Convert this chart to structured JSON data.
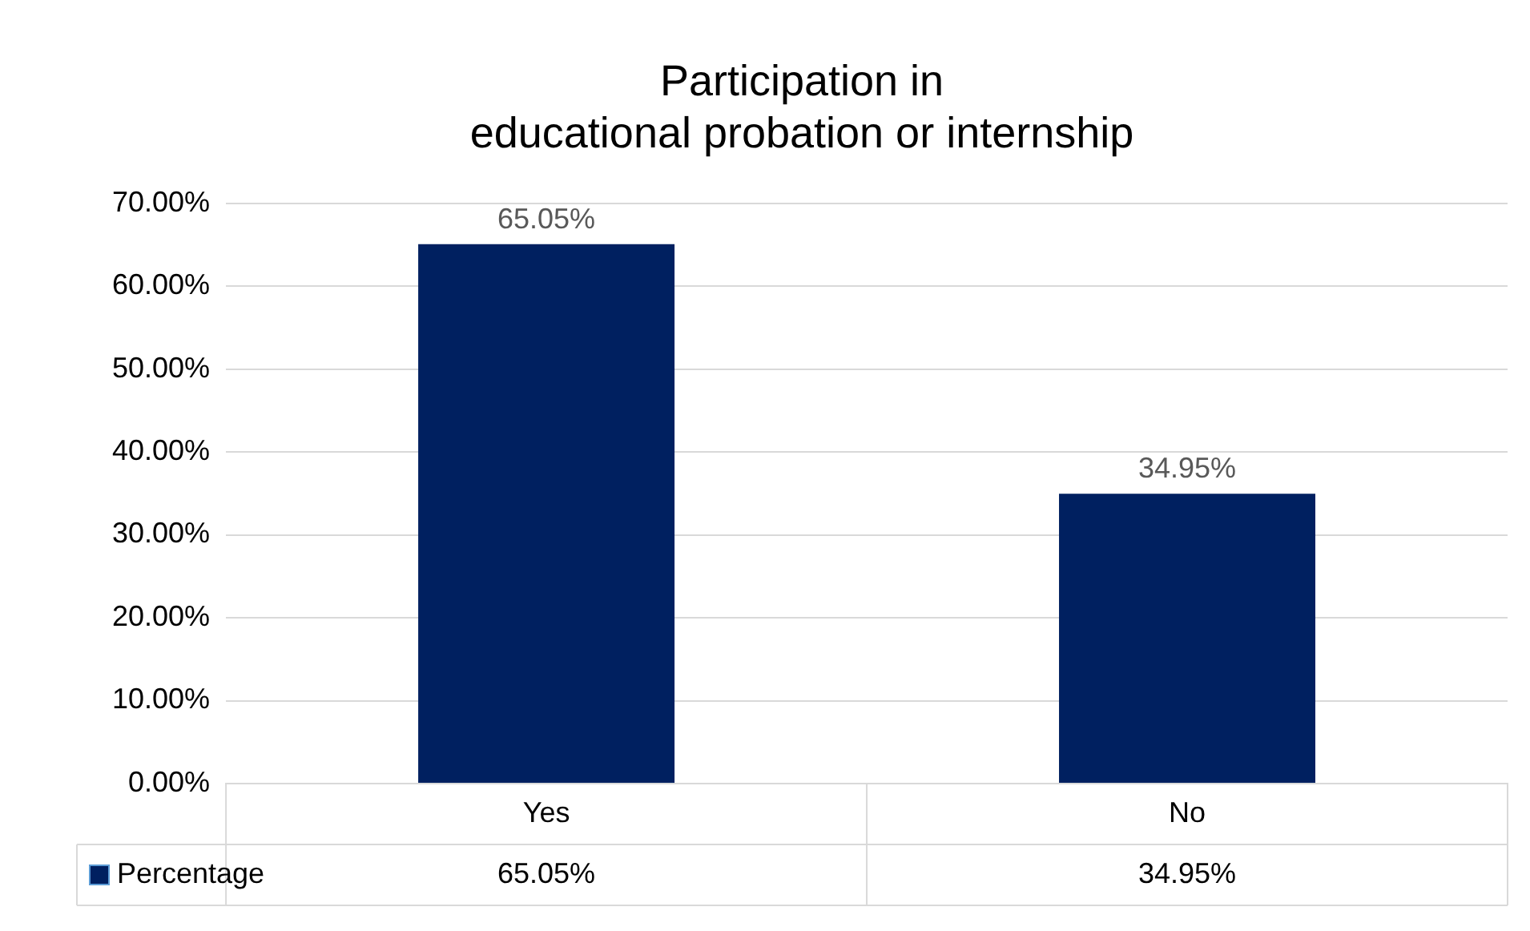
{
  "chart_data": {
    "type": "bar",
    "title": "Participation in\neducational probation or internship",
    "categories": [
      "Yes",
      "No"
    ],
    "series": [
      {
        "name": "Percentage",
        "color": "#002060",
        "values": [
          65.05,
          34.95
        ],
        "value_labels": [
          "65.05%",
          "34.95%"
        ]
      }
    ],
    "ylim": [
      0,
      70
    ],
    "yticks": [
      {
        "value": 0,
        "label": "0.00%"
      },
      {
        "value": 10,
        "label": "10.00%"
      },
      {
        "value": 20,
        "label": "20.00%"
      },
      {
        "value": 30,
        "label": "30.00%"
      },
      {
        "value": 40,
        "label": "40.00%"
      },
      {
        "value": 50,
        "label": "50.00%"
      },
      {
        "value": 60,
        "label": "60.00%"
      },
      {
        "value": 70,
        "label": "70.00%"
      }
    ],
    "grid": "y",
    "legend": "bottom"
  }
}
